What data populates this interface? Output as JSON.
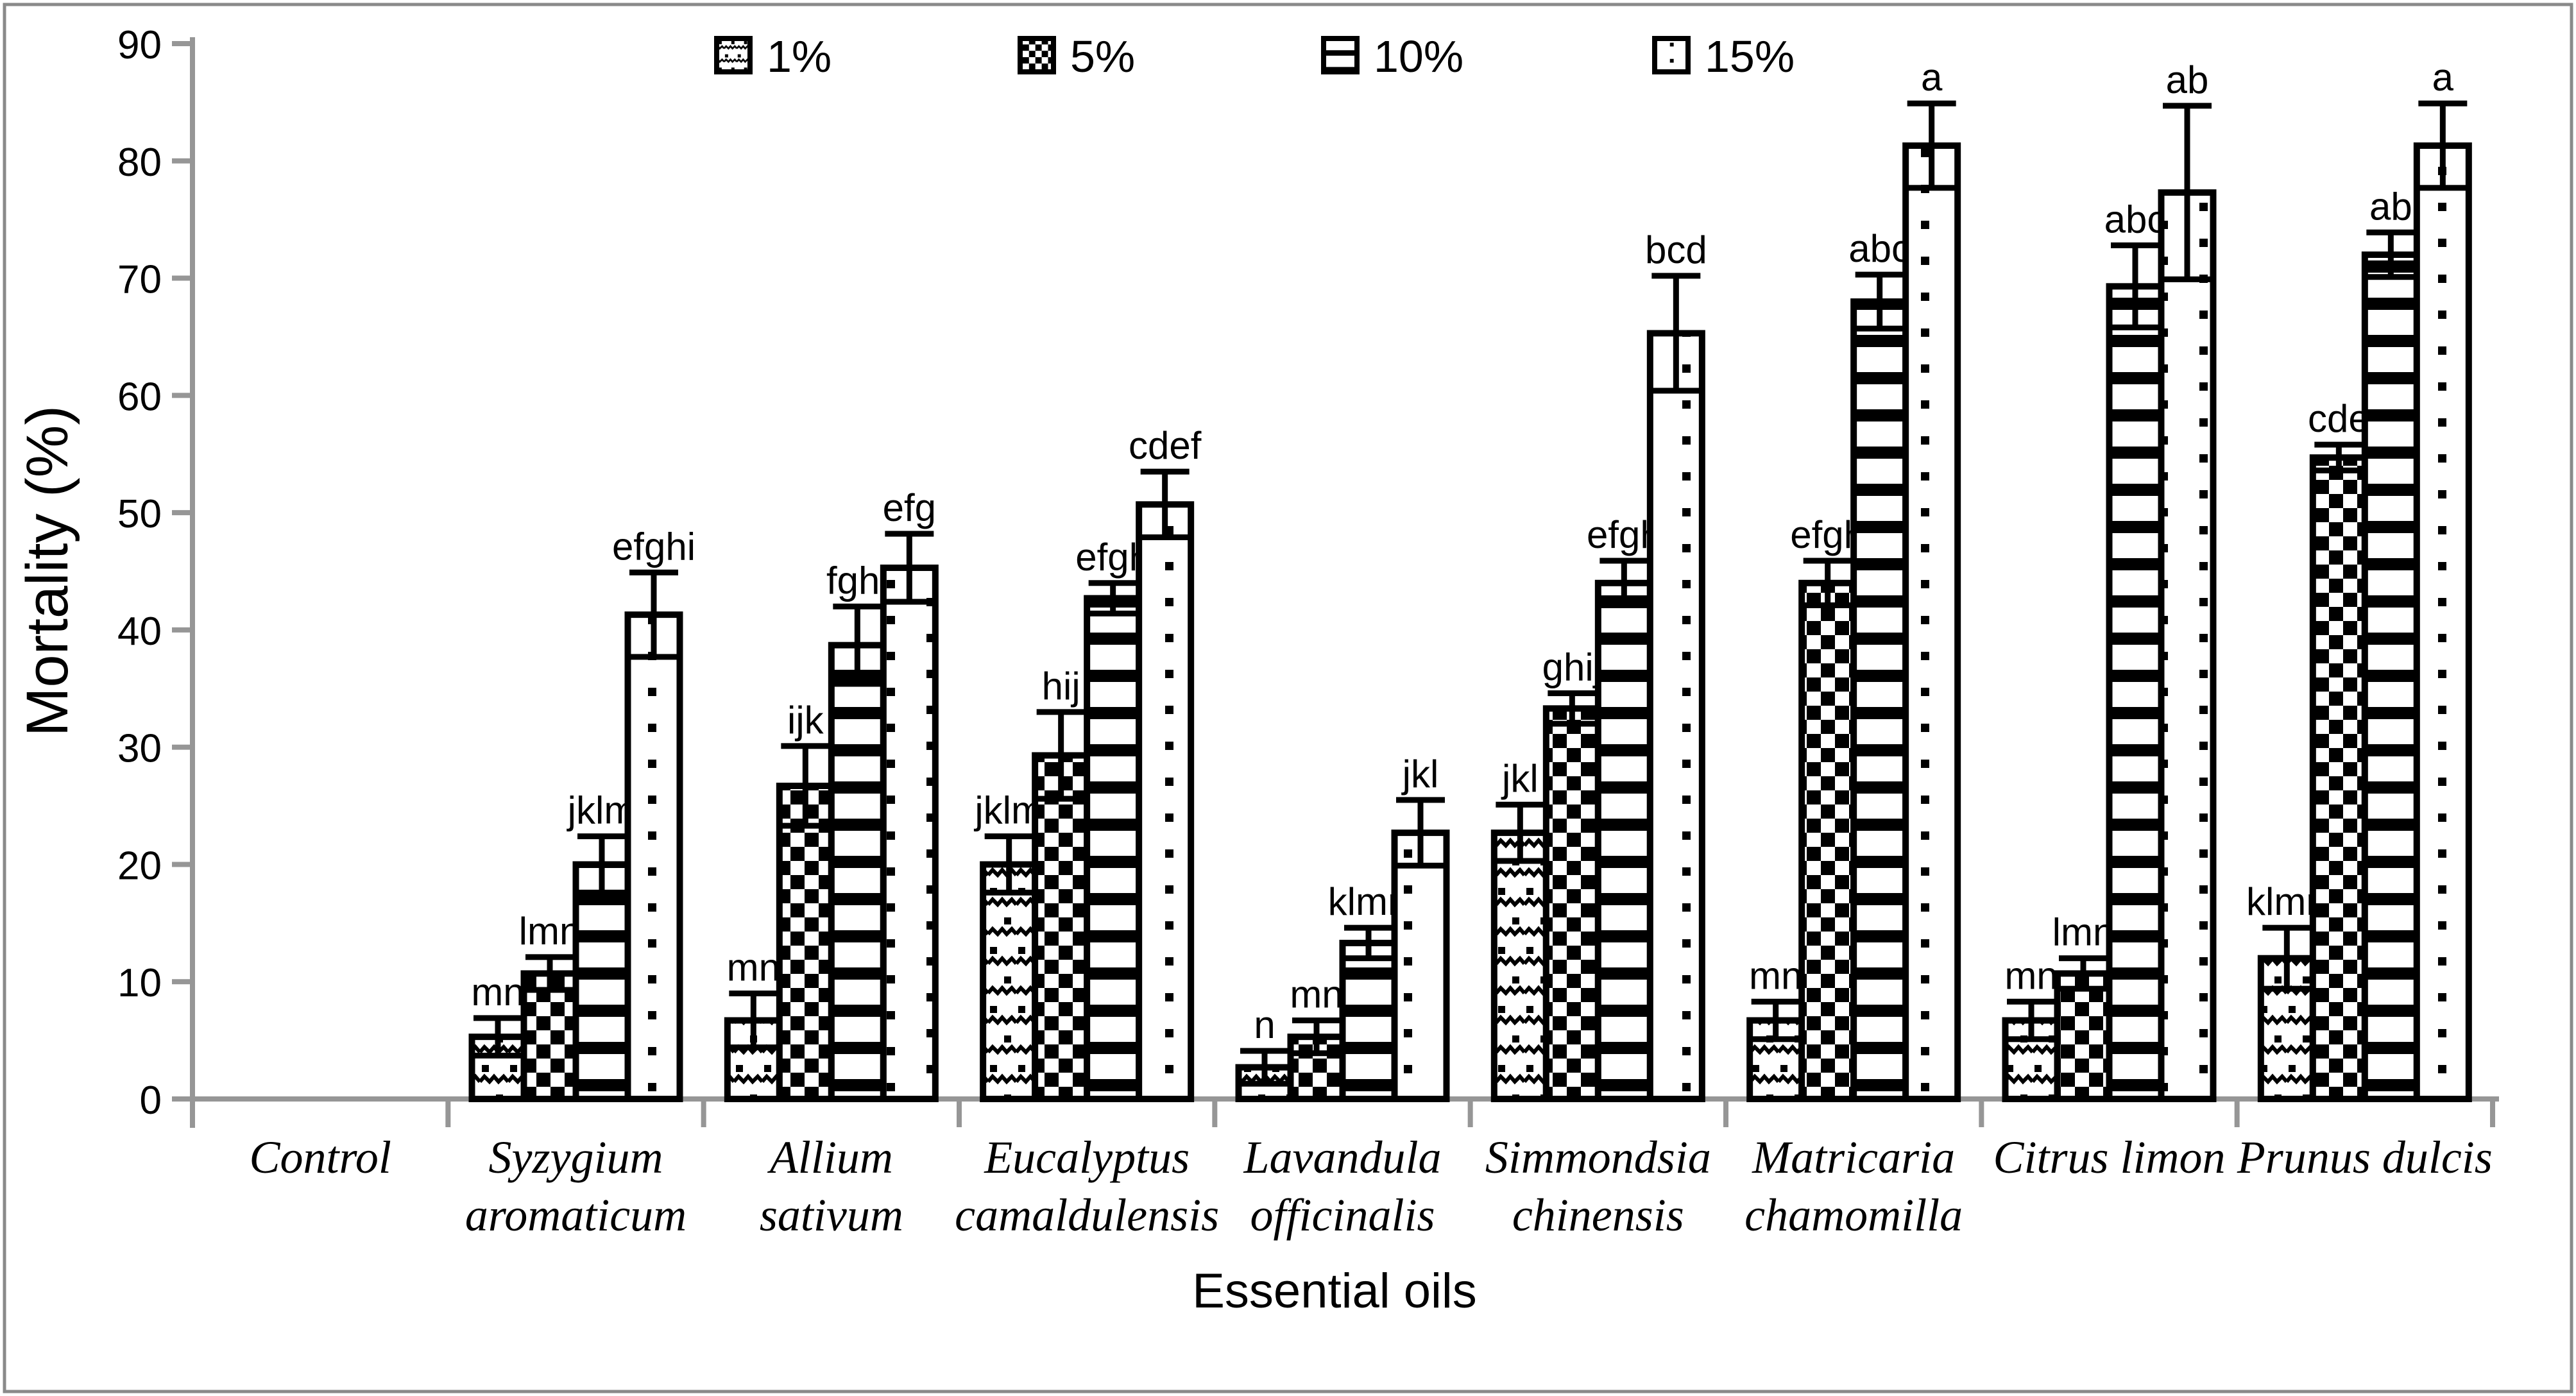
{
  "figure": {
    "background": "#ffffff",
    "frame_color": "#8a8a8a",
    "axis_color": "#969696",
    "bar_fill_bg": "#ffffff",
    "bar_outline": "#000000",
    "text_color": "#000000"
  },
  "legend": {
    "items": [
      {
        "label": "1%",
        "pattern": "wavy-dots"
      },
      {
        "label": "5%",
        "pattern": "checkerboard"
      },
      {
        "label": "10%",
        "pattern": "horizontal-stripes"
      },
      {
        "label": "15%",
        "pattern": "sparse-dots"
      }
    ]
  },
  "chart_data": {
    "type": "bar",
    "title": "",
    "xlabel": "Essential oils",
    "ylabel": "Mortality (%)",
    "ylim": [
      0,
      90
    ],
    "y_ticks": [
      0,
      10,
      20,
      30,
      40,
      50,
      60,
      70,
      80,
      90
    ],
    "grid": false,
    "legend_position": "top",
    "categories": [
      "Control",
      "Syzygium aromaticum",
      "Allium sativum",
      "Eucalyptus camaldulensis",
      "Lavandula officinalis",
      "Simmondsia chinensis",
      "Matricaria chamomilla",
      "Citrus limon",
      "Prunus dulcis"
    ],
    "category_label_lines": [
      [
        "Control"
      ],
      [
        "Syzygium",
        "aromaticum"
      ],
      [
        "Allium",
        "sativum"
      ],
      [
        "Eucalyptus",
        "camaldulensis"
      ],
      [
        "Lavandula",
        "officinalis"
      ],
      [
        "Simmondsia",
        "chinensis"
      ],
      [
        "Matricaria",
        "chamomilla"
      ],
      [
        "Citrus limon"
      ],
      [
        "Prunus dulcis"
      ]
    ],
    "series": [
      {
        "name": "1%",
        "pattern": "wavy-dots",
        "values": [
          0,
          5.3,
          6.7,
          20.0,
          2.7,
          22.7,
          6.7,
          6.7,
          12.0
        ],
        "errors": [
          0,
          1.6,
          2.3,
          2.4,
          1.4,
          2.4,
          1.6,
          1.6,
          2.6
        ],
        "letters": [
          "",
          "mn",
          "mn",
          "jklm",
          "n",
          "jkl",
          "mn",
          "mn",
          "klmn"
        ]
      },
      {
        "name": "5%",
        "pattern": "checkerboard",
        "values": [
          0,
          10.7,
          26.7,
          29.3,
          5.3,
          33.3,
          44.0,
          10.7,
          54.7
        ],
        "errors": [
          0,
          1.4,
          3.4,
          3.7,
          1.4,
          1.3,
          1.9,
          1.3,
          1.1
        ],
        "letters": [
          "",
          "lmn",
          "ijk",
          "hij",
          "mn",
          "ghij",
          "efgh",
          "lmn",
          "cde"
        ]
      },
      {
        "name": "10%",
        "pattern": "horizontal-stripes",
        "values": [
          0,
          20.0,
          38.7,
          42.7,
          13.3,
          44.0,
          68.0,
          69.3,
          72.0
        ],
        "errors": [
          0,
          2.4,
          3.3,
          1.3,
          1.3,
          1.9,
          2.3,
          3.5,
          1.9
        ],
        "letters": [
          "",
          "jklm",
          "fghi",
          "efgh",
          "klmn",
          "efgh",
          "abc",
          "abc",
          "ab"
        ]
      },
      {
        "name": "15%",
        "pattern": "sparse-dots",
        "values": [
          0,
          41.3,
          45.3,
          50.7,
          22.7,
          65.3,
          81.3,
          77.3,
          81.3
        ],
        "errors": [
          0,
          3.6,
          2.9,
          2.8,
          2.8,
          4.9,
          3.6,
          7.4,
          3.6
        ],
        "letters": [
          "",
          "efghi",
          "efg",
          "cdef",
          "jkl",
          "bcd",
          "a",
          "ab",
          "a"
        ]
      }
    ]
  }
}
